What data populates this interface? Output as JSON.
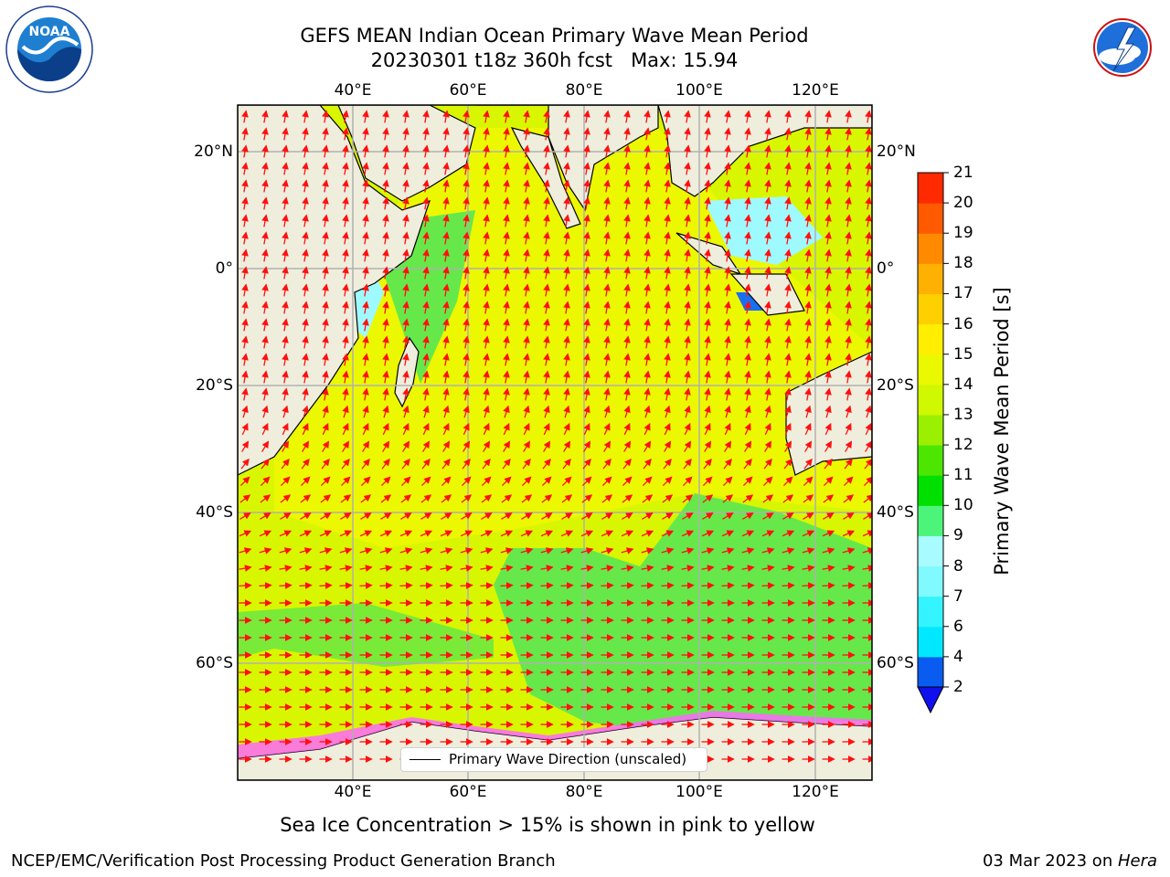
{
  "title": {
    "line1": "GEFS MEAN Indian Ocean Primary Wave Mean Period",
    "line2": "20230301 t18z 360h fcst   Max: 15.94"
  },
  "logos": {
    "noaa": "NOAA",
    "nws": "NATIONAL WEATHER SERVICE"
  },
  "axes": {
    "lon_labels": [
      "40°E",
      "60°E",
      "80°E",
      "100°E",
      "120°E"
    ],
    "lat_labels": [
      "20°N",
      "0°",
      "20°S",
      "40°S",
      "60°S"
    ]
  },
  "colorbar": {
    "title": "Primary Wave Mean Period [s]",
    "levels": [
      "2",
      "4",
      "6",
      "7",
      "8",
      "9",
      "10",
      "11",
      "12",
      "13",
      "14",
      "15",
      "16",
      "17",
      "18",
      "19",
      "20",
      "21"
    ],
    "colors": [
      "#0a5cf0",
      "#00e8ff",
      "#33f4ff",
      "#80faff",
      "#a8fcff",
      "#4cf57a",
      "#00e000",
      "#4ce600",
      "#9af000",
      "#d0f800",
      "#eaf800",
      "#ffee00",
      "#ffd000",
      "#ffb000",
      "#ff8a00",
      "#ff5a00",
      "#ff2a00"
    ],
    "extend_color": "#1010ee"
  },
  "legend": {
    "label": "Primary Wave Direction (unscaled)"
  },
  "caption": "Sea Ice Concentration > 15% is shown in pink to yellow",
  "footer": {
    "left": "NCEP/EMC/Verification Post Processing Product Generation Branch",
    "right_date": "03 Mar 2023 on ",
    "right_host": "Hera"
  },
  "colors": {
    "land": "#efeedd",
    "ocean_main": "#d8f600",
    "ocean_high": "#ecf800",
    "ocean_green": "#66e84a",
    "arrow": "#ff1010"
  }
}
